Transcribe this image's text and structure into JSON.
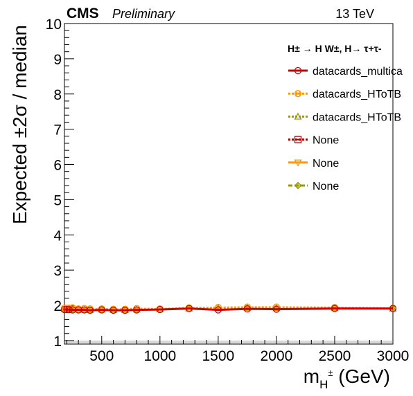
{
  "header": {
    "experiment": "CMS",
    "status": "Preliminary",
    "energy": "13 TeV"
  },
  "chart_data": {
    "type": "line",
    "title": "",
    "xlabel_main": "m",
    "xlabel_sub": "H",
    "xlabel_sup": "±",
    "xlabel_unit": " (GeV)",
    "ylabel": "Expected ±2σ / median",
    "xlim": [
      180,
      3000
    ],
    "ylim": [
      0.9,
      10
    ],
    "xticks": [
      500,
      1000,
      1500,
      2000,
      2500,
      3000
    ],
    "yticks": [
      1,
      2,
      3,
      4,
      5,
      6,
      7,
      8,
      9,
      10
    ],
    "legend_title": "H± → H W±, H→ τ+τ-",
    "legend_placement": "top-right",
    "reference_band": [
      0.9,
      1.0
    ],
    "series": [
      {
        "name": "datacards_multica",
        "color": "#cc0000",
        "dash": "solid",
        "marker": "circle",
        "x": [
          180,
          200,
          220,
          250,
          300,
          350,
          400,
          500,
          600,
          700,
          800,
          1000,
          1250,
          1500,
          1750,
          2000,
          2500,
          3000
        ],
        "values": [
          1.88,
          1.88,
          1.88,
          1.87,
          1.87,
          1.87,
          1.86,
          1.87,
          1.86,
          1.86,
          1.87,
          1.88,
          1.91,
          1.87,
          1.9,
          1.89,
          1.91,
          1.91
        ]
      },
      {
        "name": "datacards_HToTB",
        "color": "#ff9900",
        "dash": "dotted",
        "marker": "crossed-circle",
        "x": [
          180,
          200,
          220,
          250,
          300,
          350,
          400,
          500,
          600,
          700,
          800,
          1000,
          1250,
          1500,
          1750,
          2000,
          2500,
          3000
        ],
        "values": [
          1.92,
          1.91,
          1.92,
          1.93,
          1.9,
          1.91,
          1.9,
          1.9,
          1.89,
          1.89,
          1.91,
          1.9,
          1.93,
          1.94,
          1.95,
          1.95,
          1.94,
          1.92
        ]
      },
      {
        "name": "datacards_HToTB",
        "color": "#999900",
        "dash": "dotted",
        "marker": "triangle",
        "x": [
          180,
          200,
          220,
          250,
          300,
          350,
          400,
          500,
          600,
          700,
          800,
          1000,
          1250,
          1500,
          1750,
          2000,
          2500,
          3000
        ],
        "values": [
          1.89,
          1.9,
          1.88,
          1.89,
          1.88,
          1.87,
          1.87,
          1.88,
          1.87,
          1.87,
          1.88,
          1.89,
          1.91,
          1.92,
          1.93,
          1.92,
          1.92,
          1.91
        ]
      },
      {
        "name": "None",
        "color": "#aa0000",
        "dash": "dotted",
        "marker": "dotted-square",
        "x": [],
        "values": []
      },
      {
        "name": "None",
        "color": "#ff9900",
        "dash": "solid",
        "marker": "triangle-down",
        "x": [],
        "values": []
      },
      {
        "name": "None",
        "color": "#999900",
        "dash": "dashed",
        "marker": "diamond-cross",
        "x": [],
        "values": []
      }
    ]
  }
}
